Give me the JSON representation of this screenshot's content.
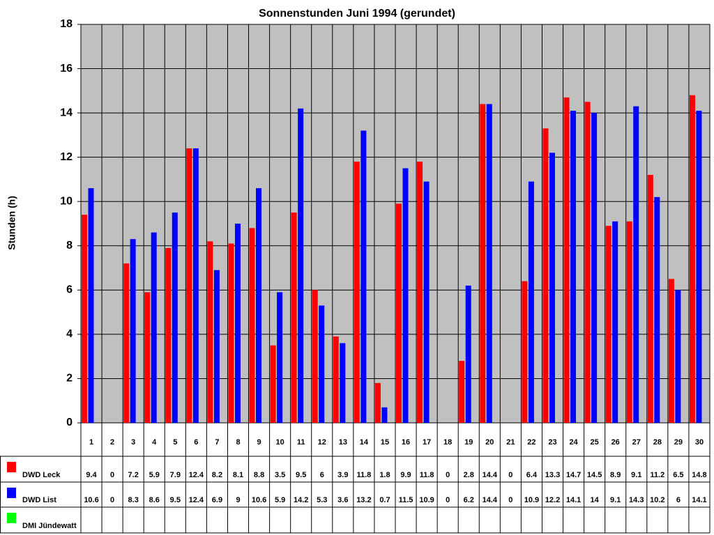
{
  "chart_data": {
    "type": "bar",
    "title": "Sonnenstunden Juni 1994 (gerundet)",
    "y_label": "Stunden (h)",
    "categories": [
      "1",
      "2",
      "3",
      "4",
      "5",
      "6",
      "7",
      "8",
      "9",
      "10",
      "11",
      "12",
      "13",
      "14",
      "15",
      "16",
      "17",
      "18",
      "19",
      "20",
      "21",
      "22",
      "23",
      "24",
      "25",
      "26",
      "27",
      "28",
      "29",
      "30"
    ],
    "series": [
      {
        "name": "DWD Leck",
        "color": "#ff0000",
        "values": [
          9.4,
          0,
          7.2,
          5.9,
          7.9,
          12.4,
          8.2,
          8.1,
          8.8,
          3.5,
          9.5,
          6,
          3.9,
          11.8,
          1.8,
          9.9,
          11.8,
          0,
          2.8,
          14.4,
          0,
          6.4,
          13.3,
          14.7,
          14.5,
          8.9,
          9.1,
          11.2,
          6.5,
          14.8
        ]
      },
      {
        "name": "DWD List",
        "color": "#0000ff",
        "values": [
          10.6,
          0,
          8.3,
          8.6,
          9.5,
          12.4,
          6.9,
          9,
          10.6,
          5.9,
          14.2,
          5.3,
          3.6,
          13.2,
          0.7,
          11.5,
          10.9,
          0,
          6.2,
          14.4,
          0,
          10.9,
          12.2,
          14.1,
          14,
          9.1,
          14.3,
          10.2,
          6,
          14.1
        ]
      },
      {
        "name": "DMI Jündewatt",
        "color": "#00ff00",
        "values": [
          null,
          null,
          null,
          null,
          null,
          null,
          null,
          null,
          null,
          null,
          null,
          null,
          null,
          null,
          null,
          null,
          null,
          null,
          null,
          null,
          null,
          null,
          null,
          null,
          null,
          null,
          null,
          null,
          null,
          null
        ]
      }
    ],
    "ylim": [
      0,
      18
    ],
    "yticks": [
      0,
      2,
      4,
      6,
      8,
      10,
      12,
      14,
      16,
      18
    ],
    "grid": true
  }
}
